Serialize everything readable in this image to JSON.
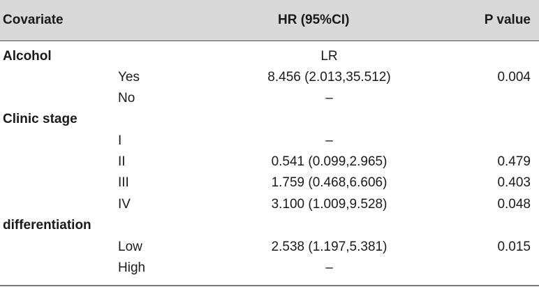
{
  "header": {
    "covariate": "Covariate",
    "hr": "HR (95%CI)",
    "p": "P value"
  },
  "groups": [
    {
      "name": "Alcohol",
      "group_hr": "LR",
      "rows": [
        {
          "level": "Yes",
          "hr": "8.456 (2.013,35.512)",
          "p": "0.004"
        },
        {
          "level": "No",
          "hr": "–",
          "p": ""
        }
      ]
    },
    {
      "name": "Clinic stage",
      "group_hr": "",
      "rows": [
        {
          "level": "I",
          "hr": "–",
          "p": ""
        },
        {
          "level": "II",
          "hr": "0.541 (0.099,2.965)",
          "p": "0.479"
        },
        {
          "level": "III",
          "hr": "1.759 (0.468,6.606)",
          "p": "0.403"
        },
        {
          "level": "IV",
          "hr": "3.100 (1.009,9.528)",
          "p": "0.048"
        }
      ]
    },
    {
      "name": "differentiation",
      "group_hr": "",
      "rows": [
        {
          "level": "Low",
          "hr": "2.538 (1.197,5.381)",
          "p": "0.015"
        },
        {
          "level": "High",
          "hr": "–",
          "p": ""
        }
      ]
    }
  ]
}
